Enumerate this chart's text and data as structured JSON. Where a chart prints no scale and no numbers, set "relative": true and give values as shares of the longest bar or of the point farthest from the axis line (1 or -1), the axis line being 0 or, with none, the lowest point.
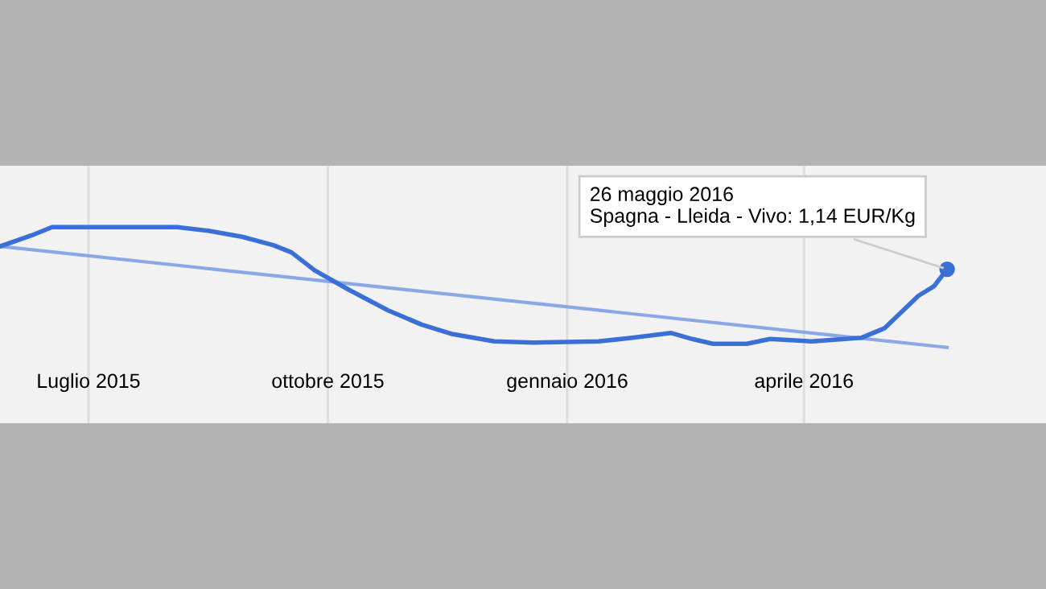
{
  "chart_data": {
    "type": "line",
    "relative": true,
    "xlim": [
      "2015-05-28",
      "2016-07-03"
    ],
    "xticks": [
      {
        "value": "2015-07-01",
        "label": "Luglio 2015"
      },
      {
        "value": "2015-10-01",
        "label": "ottobre 2015"
      },
      {
        "value": "2016-01-01",
        "label": "gennaio 2016"
      },
      {
        "value": "2016-04-01",
        "label": "aprile 2016"
      }
    ],
    "grid": "x",
    "marker": "none",
    "line_style": "solid",
    "series": [
      {
        "color": "#3a6fd8",
        "x": [
          "2015-05-28",
          "2015-06-09",
          "2015-06-17",
          "2015-08-04",
          "2015-08-16",
          "2015-08-29",
          "2015-09-10",
          "2015-09-17",
          "2015-09-26",
          "2015-10-09",
          "2015-10-24",
          "2015-11-06",
          "2015-11-18",
          "2015-12-04",
          "2015-12-19",
          "2016-01-13",
          "2016-01-26",
          "2016-02-10",
          "2016-02-18",
          "2016-02-26",
          "2016-03-10",
          "2016-03-19",
          "2016-04-04",
          "2016-04-23",
          "2016-05-02",
          "2016-05-15",
          "2016-05-21",
          "2016-05-26"
        ],
        "values": [
          0.84,
          0.93,
          1,
          1,
          0.97,
          0.92,
          0.85,
          0.79,
          0.64,
          0.48,
          0.31,
          0.19,
          0.11,
          0.05,
          0.04,
          0.05,
          0.08,
          0.12,
          0.07,
          0.03,
          0.03,
          0.07,
          0.05,
          0.08,
          0.16,
          0.43,
          0.51,
          0.65
        ]
      },
      {
        "type": "line",
        "color": "#8aa8e6",
        "x": [
          "2015-05-28",
          "2016-05-26"
        ],
        "values": [
          0.84,
          0
        ]
      }
    ],
    "annotations": [
      {
        "text": "26 maggio 2016\nSpagna - Lleida - Vivo: 1,14 EUR/Kg",
        "x": "2016-05-26",
        "y": 0.65
      }
    ]
  }
}
